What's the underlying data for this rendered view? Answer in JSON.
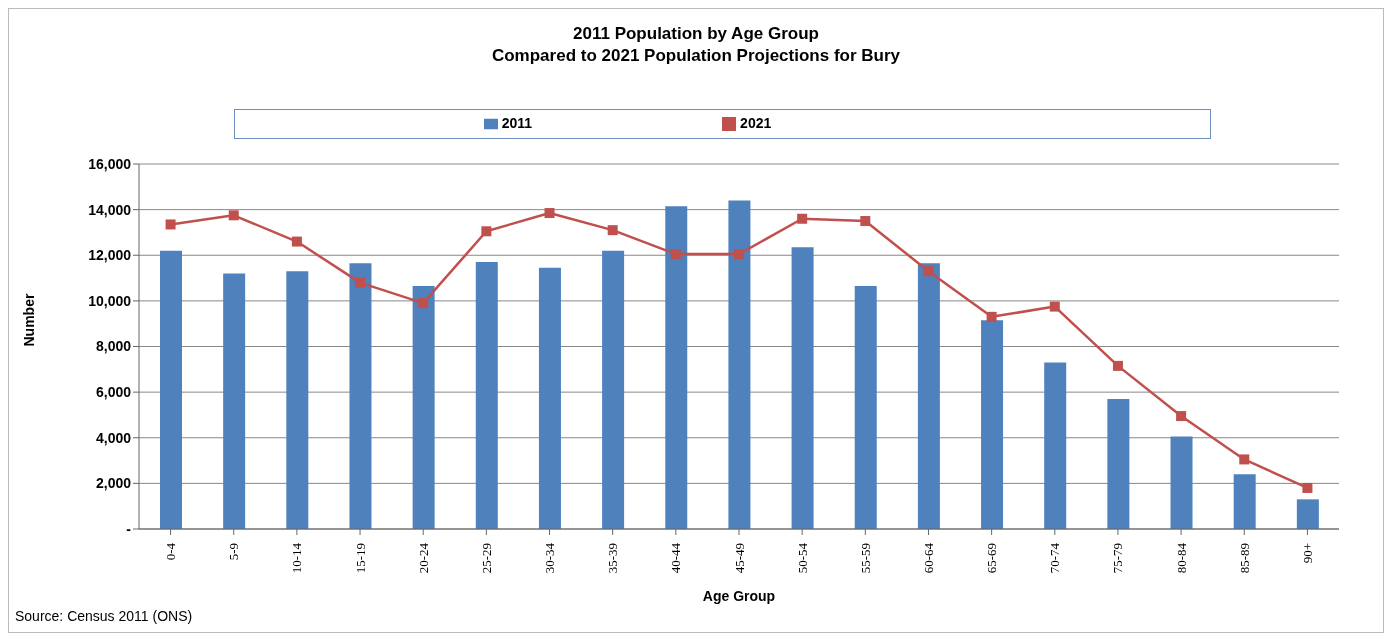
{
  "chart_data": {
    "type": "bar",
    "title": "2011 Population by Age Group",
    "subtitle": "Compared to 2021 Population Projections for Bury",
    "xlabel": "Age Group",
    "ylabel": "Number",
    "categories": [
      "0-4",
      "5-9",
      "10-14",
      "15-19",
      "20-24",
      "25-29",
      "30-34",
      "35-39",
      "40-44",
      "45-49",
      "50-54",
      "55-59",
      "60-64",
      "65-69",
      "70-74",
      "75-79",
      "80-84",
      "85-89",
      "90+"
    ],
    "series": [
      {
        "name": "2011",
        "color": "#4f81bd",
        "values": [
          12200,
          11200,
          11300,
          11650,
          10650,
          11700,
          11450,
          12200,
          14150,
          14400,
          12350,
          10650,
          11650,
          9150,
          7300,
          5700,
          4050,
          2400,
          1300
        ]
      },
      {
        "name": "2021",
        "type": "line",
        "color": "#c0504d",
        "marker": "square",
        "values": [
          13350,
          13750,
          12600,
          10800,
          9900,
          13050,
          13850,
          13100,
          12050,
          12050,
          13600,
          13500,
          11300,
          9300,
          9750,
          7150,
          4950,
          3050,
          1800
        ]
      }
    ],
    "ylim": [
      0,
      16000
    ],
    "yticks": [
      {
        "value": 0,
        "label": "-"
      },
      {
        "value": 2000,
        "label": "2,000"
      },
      {
        "value": 4000,
        "label": "4,000"
      },
      {
        "value": 6000,
        "label": "6,000"
      },
      {
        "value": 8000,
        "label": "8,000"
      },
      {
        "value": 10000,
        "label": "10,000"
      },
      {
        "value": 12000,
        "label": "12,000"
      },
      {
        "value": 14000,
        "label": "14,000"
      },
      {
        "value": 16000,
        "label": "16,000"
      }
    ],
    "grid": "y",
    "legend": "top",
    "annotations": [
      "Source:  Census 2011 (ONS)"
    ]
  }
}
